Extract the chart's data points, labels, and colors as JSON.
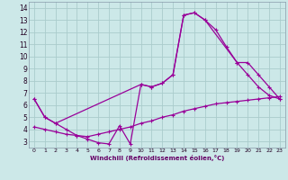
{
  "xlabel": "Windchill (Refroidissement éolien,°C)",
  "bg_color": "#cce8e8",
  "grid_color": "#aacccc",
  "line_color": "#990099",
  "xlim": [
    -0.5,
    23.5
  ],
  "ylim": [
    2.5,
    14.5
  ],
  "yticks": [
    3,
    4,
    5,
    6,
    7,
    8,
    9,
    10,
    11,
    12,
    13,
    14
  ],
  "xticks": [
    0,
    1,
    2,
    3,
    4,
    5,
    6,
    7,
    8,
    9,
    10,
    11,
    12,
    13,
    14,
    15,
    16,
    17,
    18,
    19,
    20,
    21,
    22,
    23
  ],
  "series": [
    {
      "x": [
        0,
        1,
        2,
        3,
        4,
        5,
        6,
        7,
        8,
        9,
        10,
        11,
        12,
        13,
        14,
        15,
        16,
        17,
        18,
        19,
        20,
        21,
        22,
        23
      ],
      "y": [
        6.5,
        5.0,
        4.5,
        4.0,
        3.5,
        3.2,
        2.9,
        2.8,
        4.3,
        2.8,
        7.7,
        7.5,
        7.8,
        8.5,
        13.4,
        13.6,
        13.0,
        12.2,
        10.8,
        9.5,
        8.5,
        7.5,
        6.8,
        6.5
      ]
    },
    {
      "x": [
        0,
        1,
        2,
        10,
        11,
        12,
        13,
        14,
        15,
        16,
        19,
        20,
        21,
        22,
        23
      ],
      "y": [
        6.5,
        5.0,
        4.5,
        7.7,
        7.5,
        7.8,
        8.5,
        13.4,
        13.6,
        13.0,
        9.5,
        9.5,
        8.5,
        7.5,
        6.5
      ]
    },
    {
      "x": [
        0,
        1,
        2,
        3,
        4,
        5,
        6,
        7,
        8,
        9,
        10,
        11,
        12,
        13,
        14,
        15,
        16,
        17,
        18,
        19,
        20,
        21,
        22,
        23
      ],
      "y": [
        4.2,
        4.0,
        3.8,
        3.6,
        3.5,
        3.4,
        3.6,
        3.8,
        4.0,
        4.2,
        4.5,
        4.7,
        5.0,
        5.2,
        5.5,
        5.7,
        5.9,
        6.1,
        6.2,
        6.3,
        6.4,
        6.5,
        6.6,
        6.7
      ]
    }
  ]
}
